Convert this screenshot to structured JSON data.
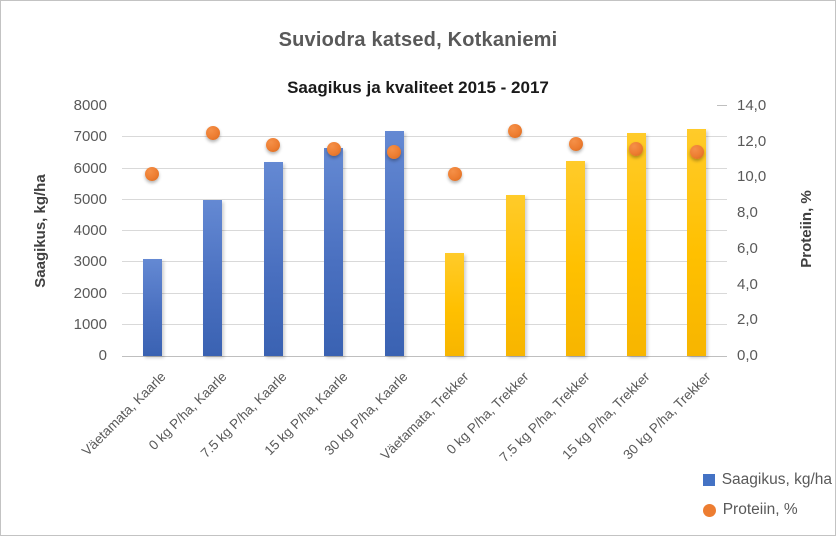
{
  "chart_data": {
    "type": "bar",
    "overlay": "scatter",
    "title": "Suviodra katsed, Kotkaniemi",
    "subtitle": "Saagikus ja kvaliteet 2015 - 2017",
    "categories": [
      "Väetamata, Kaarle",
      "0 kg P/ha, Kaarle",
      "7.5 kg P/ha, Kaarle",
      "15 kg P/ha, Kaarle",
      "30 kg P/ha, Kaarle",
      "Väetamata, Trekker",
      "0 kg P/ha, Trekker",
      "7.5 kg P/ha, Trekker",
      "15 kg P/ha, Trekker",
      "30 kg P/ha, Trekker"
    ],
    "series": [
      {
        "name": "Saagikus, kg/ha",
        "type": "bar",
        "axis": "left",
        "marker": "square",
        "color": "#4472C4",
        "values": [
          3100,
          5000,
          6200,
          6650,
          7200,
          3300,
          5150,
          6250,
          7150,
          7250
        ],
        "point_colors": [
          "#4472C4",
          "#4472C4",
          "#4472C4",
          "#4472C4",
          "#4472C4",
          "#FFC000",
          "#FFC000",
          "#FFC000",
          "#FFC000",
          "#FFC000"
        ]
      },
      {
        "name": "Proteiin, %",
        "type": "scatter",
        "axis": "right",
        "marker": "circle",
        "color": "#ED7D31",
        "values": [
          10.2,
          12.5,
          11.8,
          11.6,
          11.4,
          10.2,
          12.6,
          11.9,
          11.6,
          11.4
        ]
      }
    ],
    "left_axis": {
      "label": "Saagikus, kg/ha",
      "min": 0,
      "max": 8000,
      "step": 1000,
      "tick_labels": [
        "0",
        "1000",
        "2000",
        "3000",
        "4000",
        "5000",
        "6000",
        "7000",
        "8000"
      ]
    },
    "right_axis": {
      "label": "Proteiin, %",
      "min": 0,
      "max": 14,
      "step": 2,
      "tick_labels": [
        "0,0",
        "2,0",
        "4,0",
        "6,0",
        "8,0",
        "10,0",
        "12,0",
        "14,0"
      ]
    },
    "grid": true,
    "legend_position": "bottom-right"
  },
  "colors": {
    "bar_blue": "#4472C4",
    "bar_gold": "#FFC000",
    "point_orange": "#ED7D31",
    "title_text": "#595959",
    "axis_text": "#595959",
    "gridline": "#D9D9D9"
  }
}
